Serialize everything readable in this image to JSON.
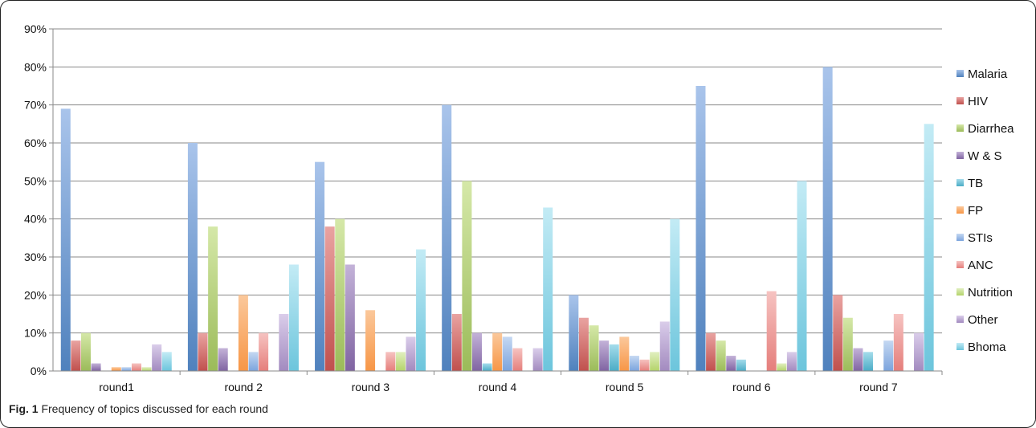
{
  "caption": {
    "label": "Fig. 1",
    "text": "Frequency of topics discussed for each round"
  },
  "chart_data": {
    "type": "bar",
    "categories": [
      "round1",
      "round 2",
      "round 3",
      "round 4",
      "round 5",
      "round 6",
      "round 7"
    ],
    "ylim": [
      0,
      90
    ],
    "yticks": [
      0,
      10,
      20,
      30,
      40,
      50,
      60,
      70,
      80,
      90
    ],
    "ytick_labels": [
      "0%",
      "10%",
      "20%",
      "30%",
      "40%",
      "50%",
      "60%",
      "70%",
      "80%",
      "90%"
    ],
    "grid": true,
    "legend_position": "right",
    "title": "",
    "xlabel": "",
    "ylabel": "",
    "series": [
      {
        "name": "Malaria",
        "color": "#4F81BD",
        "light": "#A9C4EB",
        "values": [
          69,
          60,
          55,
          70,
          20,
          75,
          80
        ]
      },
      {
        "name": "HIV",
        "color": "#C0504D",
        "light": "#E9A3A1",
        "values": [
          8,
          10,
          38,
          15,
          14,
          10,
          20
        ]
      },
      {
        "name": "Diarrhea",
        "color": "#9BBB59",
        "light": "#D5E8A8",
        "values": [
          10,
          38,
          40,
          50,
          12,
          8,
          14
        ]
      },
      {
        "name": "W & S",
        "color": "#8064A2",
        "light": "#C3B2D8",
        "values": [
          2,
          6,
          28,
          10,
          8,
          4,
          6
        ]
      },
      {
        "name": "TB",
        "color": "#4BACC6",
        "light": "#A5DCEB",
        "values": [
          0,
          0,
          0,
          2,
          7,
          3,
          5
        ]
      },
      {
        "name": "FP",
        "color": "#F79646",
        "light": "#FBC89B",
        "values": [
          1,
          20,
          16,
          10,
          9,
          0,
          0
        ]
      },
      {
        "name": "STIs",
        "color": "#7BA4DD",
        "light": "#C5D8F2",
        "values": [
          1,
          5,
          0,
          9,
          4,
          0,
          8
        ]
      },
      {
        "name": "ANC",
        "color": "#E57E7B",
        "light": "#F6C3C1",
        "values": [
          2,
          10,
          5,
          6,
          3,
          21,
          15
        ]
      },
      {
        "name": "Nutrition",
        "color": "#B4D36A",
        "light": "#E1EFC0",
        "values": [
          1,
          0,
          5,
          0,
          5,
          2,
          0
        ]
      },
      {
        "name": "Other",
        "color": "#A28ABF",
        "light": "#DACDEA",
        "values": [
          7,
          15,
          9,
          6,
          13,
          5,
          10
        ]
      },
      {
        "name": "Bhoma",
        "color": "#6CC5DC",
        "light": "#C3EBF5",
        "values": [
          5,
          28,
          32,
          43,
          40,
          50,
          65
        ]
      }
    ]
  }
}
